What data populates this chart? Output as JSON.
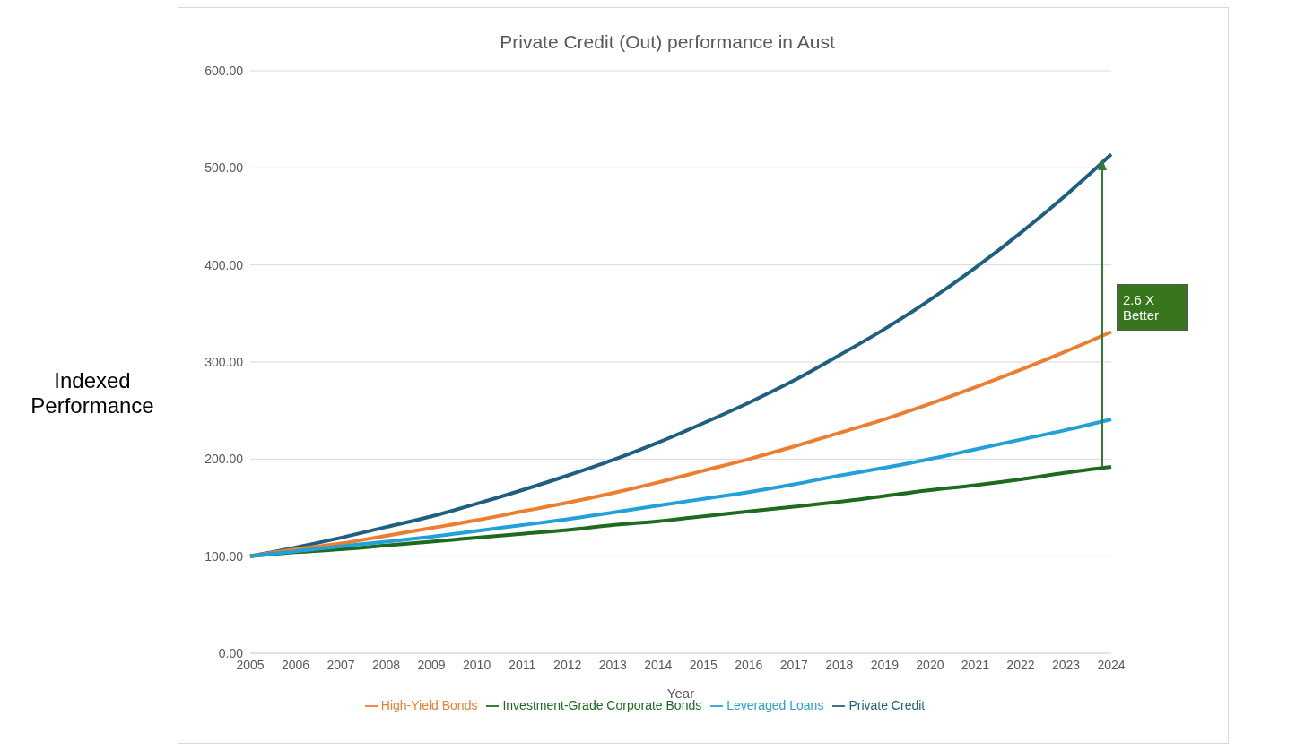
{
  "chart_data": {
    "type": "line",
    "title": "Private Credit (Out) performance in Aust",
    "xlabel": "Year",
    "ylabel": "Indexed Performance",
    "categories": [
      "2005",
      "2006",
      "2007",
      "2008",
      "2009",
      "2010",
      "2011",
      "2012",
      "2013",
      "2014",
      "2015",
      "2016",
      "2017",
      "2018",
      "2019",
      "2020",
      "2021",
      "2022",
      "2023",
      "2024"
    ],
    "series": [
      {
        "name": "Private Credit",
        "color": "#1f5f82",
        "values": [
          100,
          109,
          119,
          130,
          141,
          154,
          168,
          183,
          199,
          217,
          237,
          258,
          281,
          307,
          334,
          364,
          397,
          433,
          472,
          514
        ]
      },
      {
        "name": "High-Yield Bonds",
        "color": "#ed7d31",
        "values": [
          100,
          107,
          113,
          121,
          129,
          137,
          146,
          155,
          165,
          176,
          188,
          200,
          213,
          227,
          241,
          257,
          274,
          292,
          311,
          331
        ]
      },
      {
        "name": "Investment-Grade Corporate Bonds",
        "color": "#1e6b1e",
        "values": [
          100,
          104,
          107,
          111,
          115,
          119,
          123,
          127,
          132,
          136,
          141,
          146,
          151,
          156,
          162,
          168,
          173,
          179,
          186,
          192
        ]
      },
      {
        "name": "Leveraged Loans",
        "color": "#22a0d8",
        "values": [
          100,
          105,
          110,
          115,
          120,
          126,
          132,
          138,
          145,
          152,
          159,
          166,
          174,
          183,
          191,
          200,
          210,
          220,
          230,
          241
        ]
      }
    ],
    "ylim": [
      0,
      600
    ],
    "yticks": [
      {
        "value": 0,
        "label": "0.00"
      },
      {
        "value": 100,
        "label": "100.00"
      },
      {
        "value": 200,
        "label": "200.00"
      },
      {
        "value": 300,
        "label": "300.00"
      },
      {
        "value": 400,
        "label": "400.00"
      },
      {
        "value": 500,
        "label": "500.00"
      },
      {
        "value": 600,
        "label": "600.00"
      }
    ],
    "grid": "y",
    "legend": "bottom",
    "marker": "none",
    "line_style": "solid",
    "annotations": [
      "2.6 X Better"
    ]
  }
}
